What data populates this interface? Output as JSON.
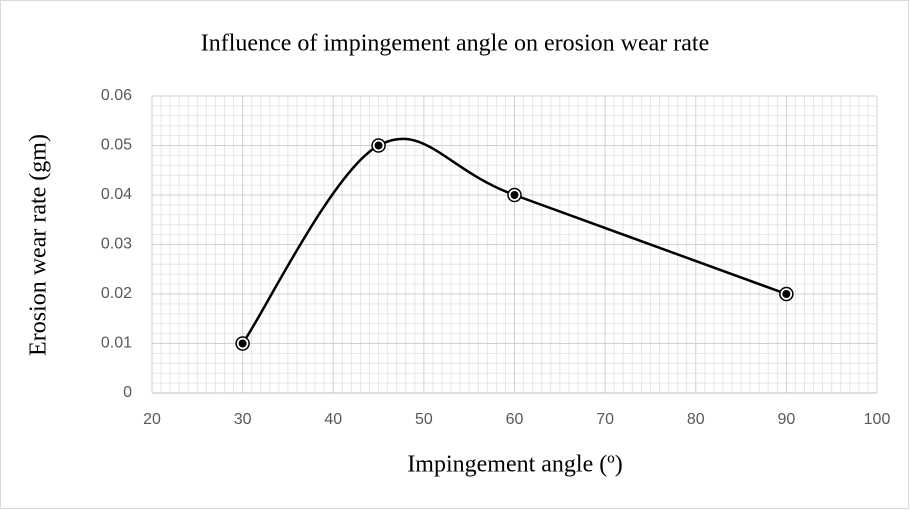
{
  "chart_data": {
    "type": "scatter",
    "smooth": true,
    "title": "Influence of impingement angle on erosion wear rate",
    "xlabel": "Impingement angle (º)",
    "ylabel": "Erosion wear rate (gm)",
    "x": [
      30,
      45,
      60,
      90
    ],
    "series": [
      {
        "color": "#000000",
        "values": [
          0.01,
          0.05,
          0.04,
          0.02
        ]
      }
    ],
    "xlim": [
      20,
      100
    ],
    "xticks": [
      20,
      30,
      40,
      50,
      60,
      70,
      80,
      90,
      100
    ],
    "ylim": [
      0,
      0.06
    ],
    "yticks": [
      0,
      0.01,
      0.02,
      0.03,
      0.04,
      0.05,
      0.06
    ],
    "grid": true,
    "minor_grid": true
  }
}
